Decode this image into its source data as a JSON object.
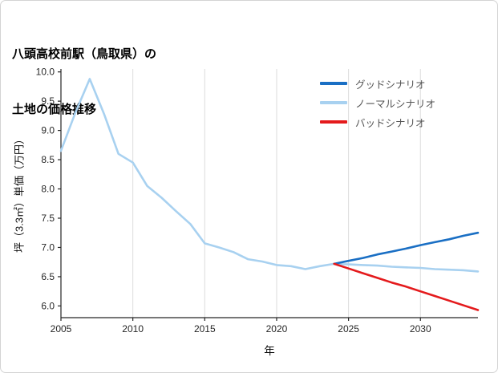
{
  "header": {
    "title_line1": "八頭高校前駅（鳥取県）の",
    "title_line2": "土地の価格推移"
  },
  "chart_data": {
    "type": "line",
    "title": "八頭高校前駅（鳥取県）の土地の価格推移",
    "xlabel": "年",
    "ylabel": "坪（3.3㎡）単価（万円）",
    "xlim": [
      2005,
      2034
    ],
    "ylim": [
      5.8,
      10.05
    ],
    "xticks": [
      2005,
      2010,
      2015,
      2020,
      2025,
      2030
    ],
    "yticks": [
      6.0,
      6.5,
      7.0,
      7.5,
      8.0,
      8.5,
      9.0,
      9.5,
      10.0
    ],
    "grid": "vertical-only",
    "grid_color": "#dcdcdc",
    "spine_color": "#262626",
    "legend_position": "upper-right",
    "legend": [
      {
        "label": "グッドシナリオ",
        "color": "#1a6fc4"
      },
      {
        "label": "ノーマルシナリオ",
        "color": "#a8d1f0"
      },
      {
        "label": "バッドシナリオ",
        "color": "#e41a1c"
      }
    ],
    "series": [
      {
        "name": "ノーマルシナリオ",
        "color": "#a8d1f0",
        "x": [
          2005,
          2006,
          2007,
          2008,
          2009,
          2010,
          2011,
          2012,
          2013,
          2014,
          2015,
          2016,
          2017,
          2018,
          2019,
          2020,
          2021,
          2022,
          2023,
          2024,
          2025,
          2026,
          2027,
          2028,
          2029,
          2030,
          2031,
          2032,
          2033,
          2034
        ],
        "y": [
          8.65,
          9.3,
          9.88,
          9.28,
          8.6,
          8.45,
          8.05,
          7.85,
          7.62,
          7.4,
          7.07,
          7.0,
          6.92,
          6.8,
          6.76,
          6.7,
          6.68,
          6.63,
          6.68,
          6.72,
          6.71,
          6.7,
          6.69,
          6.67,
          6.66,
          6.65,
          6.63,
          6.62,
          6.61,
          6.59
        ]
      },
      {
        "name": "グッドシナリオ",
        "color": "#1a6fc4",
        "x": [
          2024,
          2025,
          2026,
          2027,
          2028,
          2029,
          2030,
          2031,
          2032,
          2033,
          2034
        ],
        "y": [
          6.72,
          6.77,
          6.82,
          6.88,
          6.93,
          6.98,
          7.04,
          7.09,
          7.14,
          7.2,
          7.25
        ]
      },
      {
        "name": "バッドシナリオ",
        "color": "#e41a1c",
        "x": [
          2024,
          2025,
          2026,
          2027,
          2028,
          2029,
          2030,
          2031,
          2032,
          2033,
          2034
        ],
        "y": [
          6.72,
          6.64,
          6.56,
          6.48,
          6.4,
          6.33,
          6.25,
          6.17,
          6.09,
          6.01,
          5.93
        ]
      }
    ]
  }
}
